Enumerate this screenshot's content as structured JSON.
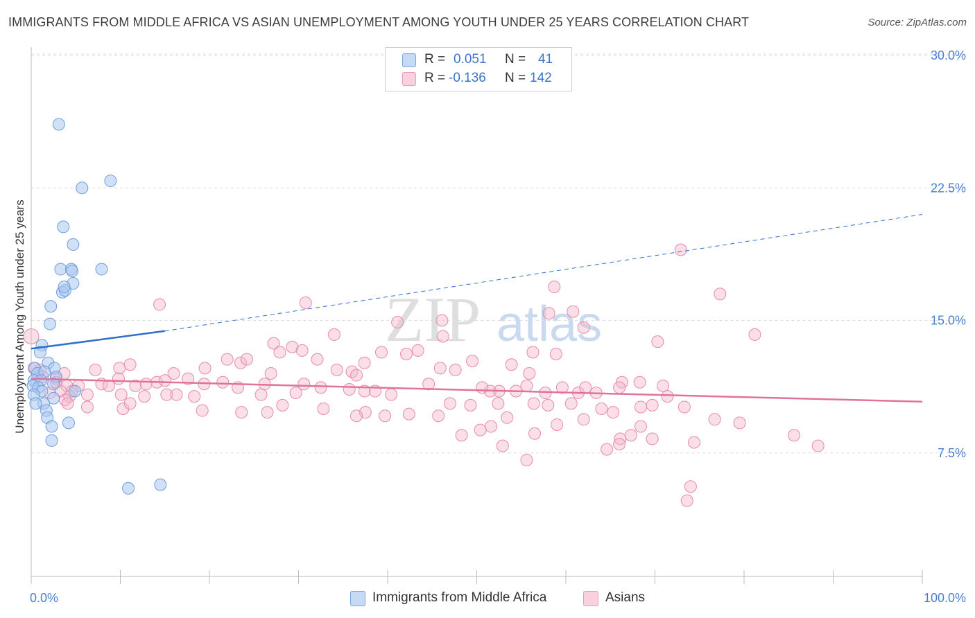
{
  "header": {
    "title": "IMMIGRANTS FROM MIDDLE AFRICA VS ASIAN UNEMPLOYMENT AMONG YOUTH UNDER 25 YEARS CORRELATION CHART",
    "source": "Source: ZipAtlas.com"
  },
  "legend_top": {
    "rows": [
      {
        "r_label": "R =",
        "r_value": "0.051",
        "n_label": "N =",
        "n_value": "41"
      },
      {
        "r_label": "R =",
        "r_value": "-0.136",
        "n_label": "N =",
        "n_value": "142"
      }
    ]
  },
  "colors": {
    "blue_fill": "#a9c6f0",
    "blue_stroke": "#6f9fdc",
    "blue_line": "#2f6fc9",
    "pink_fill": "#f4b8cc",
    "pink_stroke": "#e78aa9",
    "pink_line": "#e0729b",
    "tick_text": "#4a7fd0",
    "grid": "#dddddd"
  },
  "chart_data": {
    "type": "scatter",
    "title": "IMMIGRANTS FROM MIDDLE AFRICA VS ASIAN UNEMPLOYMENT AMONG YOUTH UNDER 25 YEARS CORRELATION CHART",
    "xlabel": "",
    "ylabel": "Unemployment Among Youth under 25 years",
    "xlim": [
      0,
      100
    ],
    "ylim": [
      0,
      31.5
    ],
    "x_tick_labels": [
      "0.0%",
      "100.0%"
    ],
    "y_ticks": [
      7.5,
      15.0,
      22.5,
      30.0
    ],
    "y_tick_labels": [
      "7.5%",
      "15.0%",
      "22.5%",
      "30.0%"
    ],
    "grid": "horizontal dashed",
    "watermark": "ZIPatlas",
    "series": [
      {
        "name": "Immigrants from Middle Africa",
        "color": "#a9c6f0",
        "R": 0.051,
        "N": 41,
        "trend": {
          "x": [
            0,
            15
          ],
          "y": [
            13.4,
            14.4
          ],
          "extended_to": [
            100,
            21.0
          ]
        },
        "points": [
          [
            3.1,
            26.1
          ],
          [
            5.7,
            22.5
          ],
          [
            8.9,
            22.9
          ],
          [
            3.6,
            20.3
          ],
          [
            4.7,
            19.3
          ],
          [
            3.3,
            17.9
          ],
          [
            4.5,
            17.9
          ],
          [
            4.6,
            17.8
          ],
          [
            7.9,
            17.9
          ],
          [
            3.5,
            16.6
          ],
          [
            3.8,
            16.7
          ],
          [
            4.7,
            17.1
          ],
          [
            3.7,
            16.9
          ],
          [
            2.2,
            15.8
          ],
          [
            2.1,
            14.8
          ],
          [
            1.2,
            13.6
          ],
          [
            1.0,
            13.2
          ],
          [
            1.9,
            12.6
          ],
          [
            0.4,
            12.3
          ],
          [
            2.6,
            12.3
          ],
          [
            0.7,
            12.0
          ],
          [
            1.5,
            12.1
          ],
          [
            2.8,
            11.8
          ],
          [
            0.3,
            11.6
          ],
          [
            1.1,
            11.6
          ],
          [
            0.2,
            11.3
          ],
          [
            2.5,
            11.4
          ],
          [
            0.8,
            11.2
          ],
          [
            4.9,
            11.0
          ],
          [
            1.2,
            11.0
          ],
          [
            0.3,
            10.8
          ],
          [
            2.5,
            10.6
          ],
          [
            1.4,
            10.3
          ],
          [
            0.5,
            10.3
          ],
          [
            1.7,
            9.9
          ],
          [
            1.8,
            9.5
          ],
          [
            4.2,
            9.2
          ],
          [
            2.3,
            9.0
          ],
          [
            2.3,
            8.2
          ],
          [
            10.9,
            5.5
          ],
          [
            14.5,
            5.7
          ]
        ]
      },
      {
        "name": "Asians",
        "color": "#f4b8cc",
        "R": -0.136,
        "N": 142,
        "trend": {
          "x": [
            0,
            100
          ],
          "y": [
            11.7,
            10.4
          ]
        },
        "points": [
          [
            72.9,
            19.0
          ],
          [
            58.7,
            16.9
          ],
          [
            77.3,
            16.5
          ],
          [
            14.4,
            15.9
          ],
          [
            30.8,
            16.0
          ],
          [
            60.8,
            15.5
          ],
          [
            58.1,
            15.4
          ],
          [
            41.1,
            14.9
          ],
          [
            46.1,
            15.0
          ],
          [
            62.0,
            14.6
          ],
          [
            81.2,
            14.2
          ],
          [
            34.0,
            14.2
          ],
          [
            46.2,
            14.1
          ],
          [
            70.3,
            13.8
          ],
          [
            27.2,
            13.7
          ],
          [
            29.3,
            13.5
          ],
          [
            30.4,
            13.3
          ],
          [
            39.3,
            13.2
          ],
          [
            42.1,
            13.1
          ],
          [
            43.4,
            13.3
          ],
          [
            56.3,
            13.2
          ],
          [
            58.9,
            13.1
          ],
          [
            27.9,
            13.2
          ],
          [
            37.4,
            12.6
          ],
          [
            32.1,
            12.8
          ],
          [
            22.0,
            12.8
          ],
          [
            23.5,
            12.6
          ],
          [
            24.2,
            12.8
          ],
          [
            49.5,
            12.7
          ],
          [
            53.9,
            12.5
          ],
          [
            7.2,
            12.2
          ],
          [
            9.9,
            12.3
          ],
          [
            11.1,
            12.5
          ],
          [
            19.5,
            12.3
          ],
          [
            34.3,
            12.2
          ],
          [
            36.0,
            12.1
          ],
          [
            45.9,
            12.3
          ],
          [
            47.6,
            12.2
          ],
          [
            55.9,
            12.0
          ],
          [
            36.5,
            11.9
          ],
          [
            26.9,
            12.0
          ],
          [
            16.0,
            12.0
          ],
          [
            17.6,
            11.7
          ],
          [
            9.8,
            11.7
          ],
          [
            21.5,
            11.5
          ],
          [
            3.7,
            12.0
          ],
          [
            1.0,
            12.2
          ],
          [
            0.3,
            12.3
          ],
          [
            1.3,
            11.8
          ],
          [
            2.8,
            11.7
          ],
          [
            2.8,
            11.5
          ],
          [
            4.0,
            11.3
          ],
          [
            5.3,
            11.3
          ],
          [
            7.9,
            11.4
          ],
          [
            8.7,
            11.3
          ],
          [
            11.7,
            11.3
          ],
          [
            12.9,
            11.4
          ],
          [
            14.1,
            11.5
          ],
          [
            15.0,
            11.6
          ],
          [
            19.4,
            11.4
          ],
          [
            23.2,
            11.2
          ],
          [
            26.2,
            11.4
          ],
          [
            30.6,
            11.4
          ],
          [
            32.5,
            11.2
          ],
          [
            35.7,
            11.1
          ],
          [
            37.4,
            11.0
          ],
          [
            38.6,
            11.0
          ],
          [
            44.6,
            11.4
          ],
          [
            52.5,
            11.0
          ],
          [
            59.6,
            11.2
          ],
          [
            61.4,
            10.9
          ],
          [
            63.4,
            10.9
          ],
          [
            55.6,
            11.3
          ],
          [
            51.5,
            11.0
          ],
          [
            50.6,
            11.2
          ],
          [
            62.2,
            11.2
          ],
          [
            66.3,
            11.5
          ],
          [
            70.9,
            11.3
          ],
          [
            66.0,
            11.2
          ],
          [
            68.3,
            11.5
          ],
          [
            3.3,
            11.0
          ],
          [
            4.6,
            11.0
          ],
          [
            2.1,
            10.9
          ],
          [
            4.3,
            10.7
          ],
          [
            6.3,
            10.8
          ],
          [
            10.1,
            10.8
          ],
          [
            12.7,
            10.7
          ],
          [
            15.2,
            10.8
          ],
          [
            16.3,
            10.8
          ],
          [
            18.3,
            10.7
          ],
          [
            25.8,
            10.8
          ],
          [
            29.7,
            10.9
          ],
          [
            40.4,
            10.8
          ],
          [
            57.7,
            10.9
          ],
          [
            54.4,
            11.0
          ],
          [
            71.4,
            10.7
          ],
          [
            3.8,
            10.5
          ],
          [
            4.1,
            10.3
          ],
          [
            6.3,
            10.1
          ],
          [
            10.3,
            10.0
          ],
          [
            11.1,
            10.3
          ],
          [
            28.2,
            10.2
          ],
          [
            32.8,
            10.0
          ],
          [
            37.5,
            9.8
          ],
          [
            47.0,
            10.3
          ],
          [
            49.3,
            10.2
          ],
          [
            52.4,
            10.3
          ],
          [
            56.4,
            10.3
          ],
          [
            58.0,
            10.2
          ],
          [
            60.6,
            10.3
          ],
          [
            64.0,
            10.0
          ],
          [
            65.3,
            9.8
          ],
          [
            68.4,
            10.1
          ],
          [
            69.7,
            10.2
          ],
          [
            73.3,
            10.1
          ],
          [
            19.2,
            9.9
          ],
          [
            23.6,
            9.8
          ],
          [
            26.5,
            9.8
          ],
          [
            36.5,
            9.6
          ],
          [
            39.7,
            9.6
          ],
          [
            42.4,
            9.7
          ],
          [
            45.7,
            9.6
          ],
          [
            53.4,
            9.5
          ],
          [
            62.0,
            9.4
          ],
          [
            68.4,
            9.0
          ],
          [
            76.7,
            9.4
          ],
          [
            79.5,
            9.2
          ],
          [
            51.6,
            9.0
          ],
          [
            50.4,
            8.8
          ],
          [
            48.3,
            8.5
          ],
          [
            56.5,
            8.6
          ],
          [
            59.0,
            9.1
          ],
          [
            66.1,
            8.3
          ],
          [
            66.0,
            8.0
          ],
          [
            67.3,
            8.5
          ],
          [
            69.7,
            8.3
          ],
          [
            74.4,
            8.1
          ],
          [
            52.9,
            7.9
          ],
          [
            55.6,
            7.1
          ],
          [
            64.6,
            7.7
          ],
          [
            74.0,
            5.6
          ],
          [
            73.6,
            4.8
          ],
          [
            88.3,
            7.9
          ],
          [
            85.6,
            8.5
          ]
        ]
      }
    ]
  },
  "bottom_legend": {
    "items": [
      {
        "label": "Immigrants from Middle Africa"
      },
      {
        "label": "Asians"
      }
    ]
  }
}
